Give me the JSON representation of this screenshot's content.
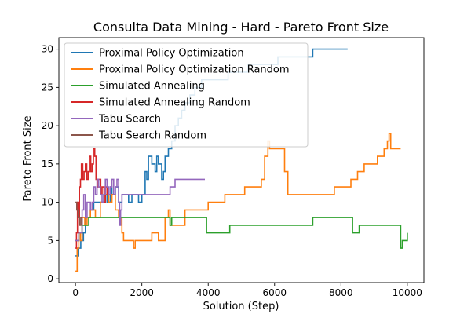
{
  "chart_data": {
    "type": "line",
    "title": "Consulta Data Mining - Hard - Pareto Front Size",
    "xlabel": "Solution (Step)",
    "ylabel": "Pareto Front Size",
    "xlim": [
      -500,
      10500
    ],
    "ylim": [
      -0.5,
      31.5
    ],
    "xticks": [
      0,
      2000,
      4000,
      6000,
      8000,
      10000
    ],
    "yticks": [
      0,
      5,
      10,
      15,
      20,
      25,
      30
    ],
    "grid": false,
    "legend_position": "top-left",
    "series": [
      {
        "name": "Proximal Policy Optimization",
        "color": "#1f77b4",
        "points": [
          [
            0,
            3
          ],
          [
            80,
            4
          ],
          [
            160,
            5
          ],
          [
            240,
            6
          ],
          [
            300,
            8
          ],
          [
            450,
            9
          ],
          [
            550,
            10
          ],
          [
            700,
            10
          ],
          [
            850,
            11
          ],
          [
            950,
            10
          ],
          [
            1050,
            12
          ],
          [
            1100,
            11
          ],
          [
            1200,
            12
          ],
          [
            1300,
            10
          ],
          [
            1400,
            11
          ],
          [
            1600,
            10
          ],
          [
            1700,
            11
          ],
          [
            1900,
            10
          ],
          [
            2000,
            11
          ],
          [
            2100,
            14
          ],
          [
            2150,
            13
          ],
          [
            2200,
            16
          ],
          [
            2300,
            15
          ],
          [
            2400,
            14
          ],
          [
            2450,
            16
          ],
          [
            2500,
            15
          ],
          [
            2600,
            13
          ],
          [
            2650,
            14
          ],
          [
            2700,
            16
          ],
          [
            2800,
            17
          ],
          [
            2900,
            18
          ],
          [
            3000,
            20
          ],
          [
            3100,
            21
          ],
          [
            3200,
            22
          ],
          [
            3300,
            23
          ],
          [
            3450,
            24
          ],
          [
            3600,
            25
          ],
          [
            3800,
            26
          ],
          [
            4000,
            26
          ],
          [
            4200,
            26
          ],
          [
            4400,
            26
          ],
          [
            4600,
            27
          ],
          [
            4800,
            27
          ],
          [
            5000,
            27
          ],
          [
            5200,
            28
          ],
          [
            5400,
            28
          ],
          [
            5600,
            28
          ],
          [
            5900,
            28
          ],
          [
            6100,
            29
          ],
          [
            6500,
            29
          ],
          [
            6800,
            29
          ],
          [
            7000,
            29
          ],
          [
            7150,
            30
          ],
          [
            7500,
            30
          ],
          [
            8000,
            30
          ],
          [
            8200,
            30
          ]
        ]
      },
      {
        "name": "Proximal Policy Optimization Random",
        "color": "#ff7f0e",
        "points": [
          [
            0,
            1
          ],
          [
            50,
            4
          ],
          [
            100,
            6
          ],
          [
            150,
            5
          ],
          [
            200,
            8
          ],
          [
            280,
            7
          ],
          [
            350,
            8
          ],
          [
            450,
            9
          ],
          [
            600,
            8
          ],
          [
            750,
            10
          ],
          [
            900,
            11
          ],
          [
            1000,
            10
          ],
          [
            1100,
            11
          ],
          [
            1200,
            9
          ],
          [
            1300,
            8
          ],
          [
            1400,
            6
          ],
          [
            1450,
            5
          ],
          [
            1700,
            5
          ],
          [
            1750,
            4
          ],
          [
            1800,
            5
          ],
          [
            2000,
            5
          ],
          [
            2300,
            6
          ],
          [
            2500,
            5
          ],
          [
            2700,
            8
          ],
          [
            2800,
            9
          ],
          [
            2850,
            7
          ],
          [
            3200,
            7
          ],
          [
            3300,
            9
          ],
          [
            3600,
            9
          ],
          [
            3800,
            9
          ],
          [
            4000,
            10
          ],
          [
            4200,
            10
          ],
          [
            4400,
            10
          ],
          [
            4500,
            11
          ],
          [
            5000,
            11
          ],
          [
            5100,
            12
          ],
          [
            5500,
            12
          ],
          [
            5600,
            13
          ],
          [
            5700,
            16
          ],
          [
            5800,
            18
          ],
          [
            5850,
            17
          ],
          [
            6000,
            17
          ],
          [
            6200,
            17
          ],
          [
            6300,
            14
          ],
          [
            6400,
            11
          ],
          [
            7000,
            11
          ],
          [
            7300,
            11
          ],
          [
            7500,
            11
          ],
          [
            7700,
            11
          ],
          [
            7800,
            12
          ],
          [
            8200,
            12
          ],
          [
            8300,
            13
          ],
          [
            8500,
            14
          ],
          [
            8700,
            15
          ],
          [
            9000,
            15
          ],
          [
            9100,
            16
          ],
          [
            9300,
            17
          ],
          [
            9400,
            18
          ],
          [
            9450,
            19
          ],
          [
            9500,
            17
          ],
          [
            9800,
            17
          ]
        ]
      },
      {
        "name": "Simulated Annealing",
        "color": "#2ca02c",
        "points": [
          [
            0,
            5
          ],
          [
            100,
            6
          ],
          [
            200,
            7
          ],
          [
            300,
            7
          ],
          [
            400,
            8
          ],
          [
            1000,
            8
          ],
          [
            2000,
            8
          ],
          [
            2800,
            8
          ],
          [
            2850,
            7
          ],
          [
            2900,
            8
          ],
          [
            3500,
            8
          ],
          [
            3900,
            8
          ],
          [
            3950,
            6
          ],
          [
            4600,
            6
          ],
          [
            4650,
            7
          ],
          [
            5000,
            7
          ],
          [
            6000,
            7
          ],
          [
            7000,
            7
          ],
          [
            7150,
            8
          ],
          [
            8000,
            8
          ],
          [
            8300,
            8
          ],
          [
            8350,
            6
          ],
          [
            8500,
            6
          ],
          [
            8550,
            7
          ],
          [
            9000,
            7
          ],
          [
            9500,
            7
          ],
          [
            9750,
            7
          ],
          [
            9800,
            4
          ],
          [
            9850,
            5
          ],
          [
            9950,
            5
          ],
          [
            10000,
            6
          ]
        ]
      },
      {
        "name": "Simulated Annealing Random",
        "color": "#d62728",
        "points": [
          [
            0,
            4
          ],
          [
            30,
            6
          ],
          [
            60,
            10
          ],
          [
            90,
            8
          ],
          [
            120,
            12
          ],
          [
            150,
            13
          ],
          [
            180,
            15
          ],
          [
            220,
            13
          ],
          [
            260,
            14
          ],
          [
            300,
            15
          ],
          [
            340,
            13
          ],
          [
            380,
            14
          ],
          [
            420,
            16
          ],
          [
            460,
            14
          ],
          [
            500,
            15
          ],
          [
            540,
            17
          ],
          [
            580,
            16
          ],
          [
            620,
            13
          ],
          [
            660,
            12
          ],
          [
            700,
            13
          ],
          [
            760,
            11
          ],
          [
            800,
            12
          ],
          [
            860,
            10
          ],
          [
            900,
            12
          ],
          [
            950,
            11
          ]
        ]
      },
      {
        "name": "Tabu Search",
        "color": "#9467bd",
        "points": [
          [
            0,
            5
          ],
          [
            100,
            6
          ],
          [
            200,
            9
          ],
          [
            250,
            11
          ],
          [
            300,
            8
          ],
          [
            350,
            10
          ],
          [
            450,
            9
          ],
          [
            500,
            10
          ],
          [
            550,
            12
          ],
          [
            600,
            11
          ],
          [
            650,
            13
          ],
          [
            700,
            12
          ],
          [
            750,
            11
          ],
          [
            800,
            10
          ],
          [
            850,
            11
          ],
          [
            900,
            13
          ],
          [
            950,
            12
          ],
          [
            1000,
            11
          ],
          [
            1050,
            12
          ],
          [
            1100,
            13
          ],
          [
            1150,
            11
          ],
          [
            1200,
            12
          ],
          [
            1250,
            13
          ],
          [
            1300,
            10
          ],
          [
            1330,
            7
          ],
          [
            1360,
            9
          ],
          [
            1400,
            11
          ],
          [
            2000,
            11
          ],
          [
            2400,
            11
          ],
          [
            2800,
            11
          ],
          [
            2850,
            12
          ],
          [
            3000,
            13
          ],
          [
            3500,
            13
          ],
          [
            3900,
            13
          ]
        ]
      },
      {
        "name": "Tabu Search Random",
        "color": "#8c564b",
        "points": [
          [
            0,
            10
          ],
          [
            40,
            9
          ],
          [
            80,
            8
          ],
          [
            120,
            7
          ],
          [
            160,
            8
          ],
          [
            200,
            7
          ]
        ]
      }
    ]
  }
}
